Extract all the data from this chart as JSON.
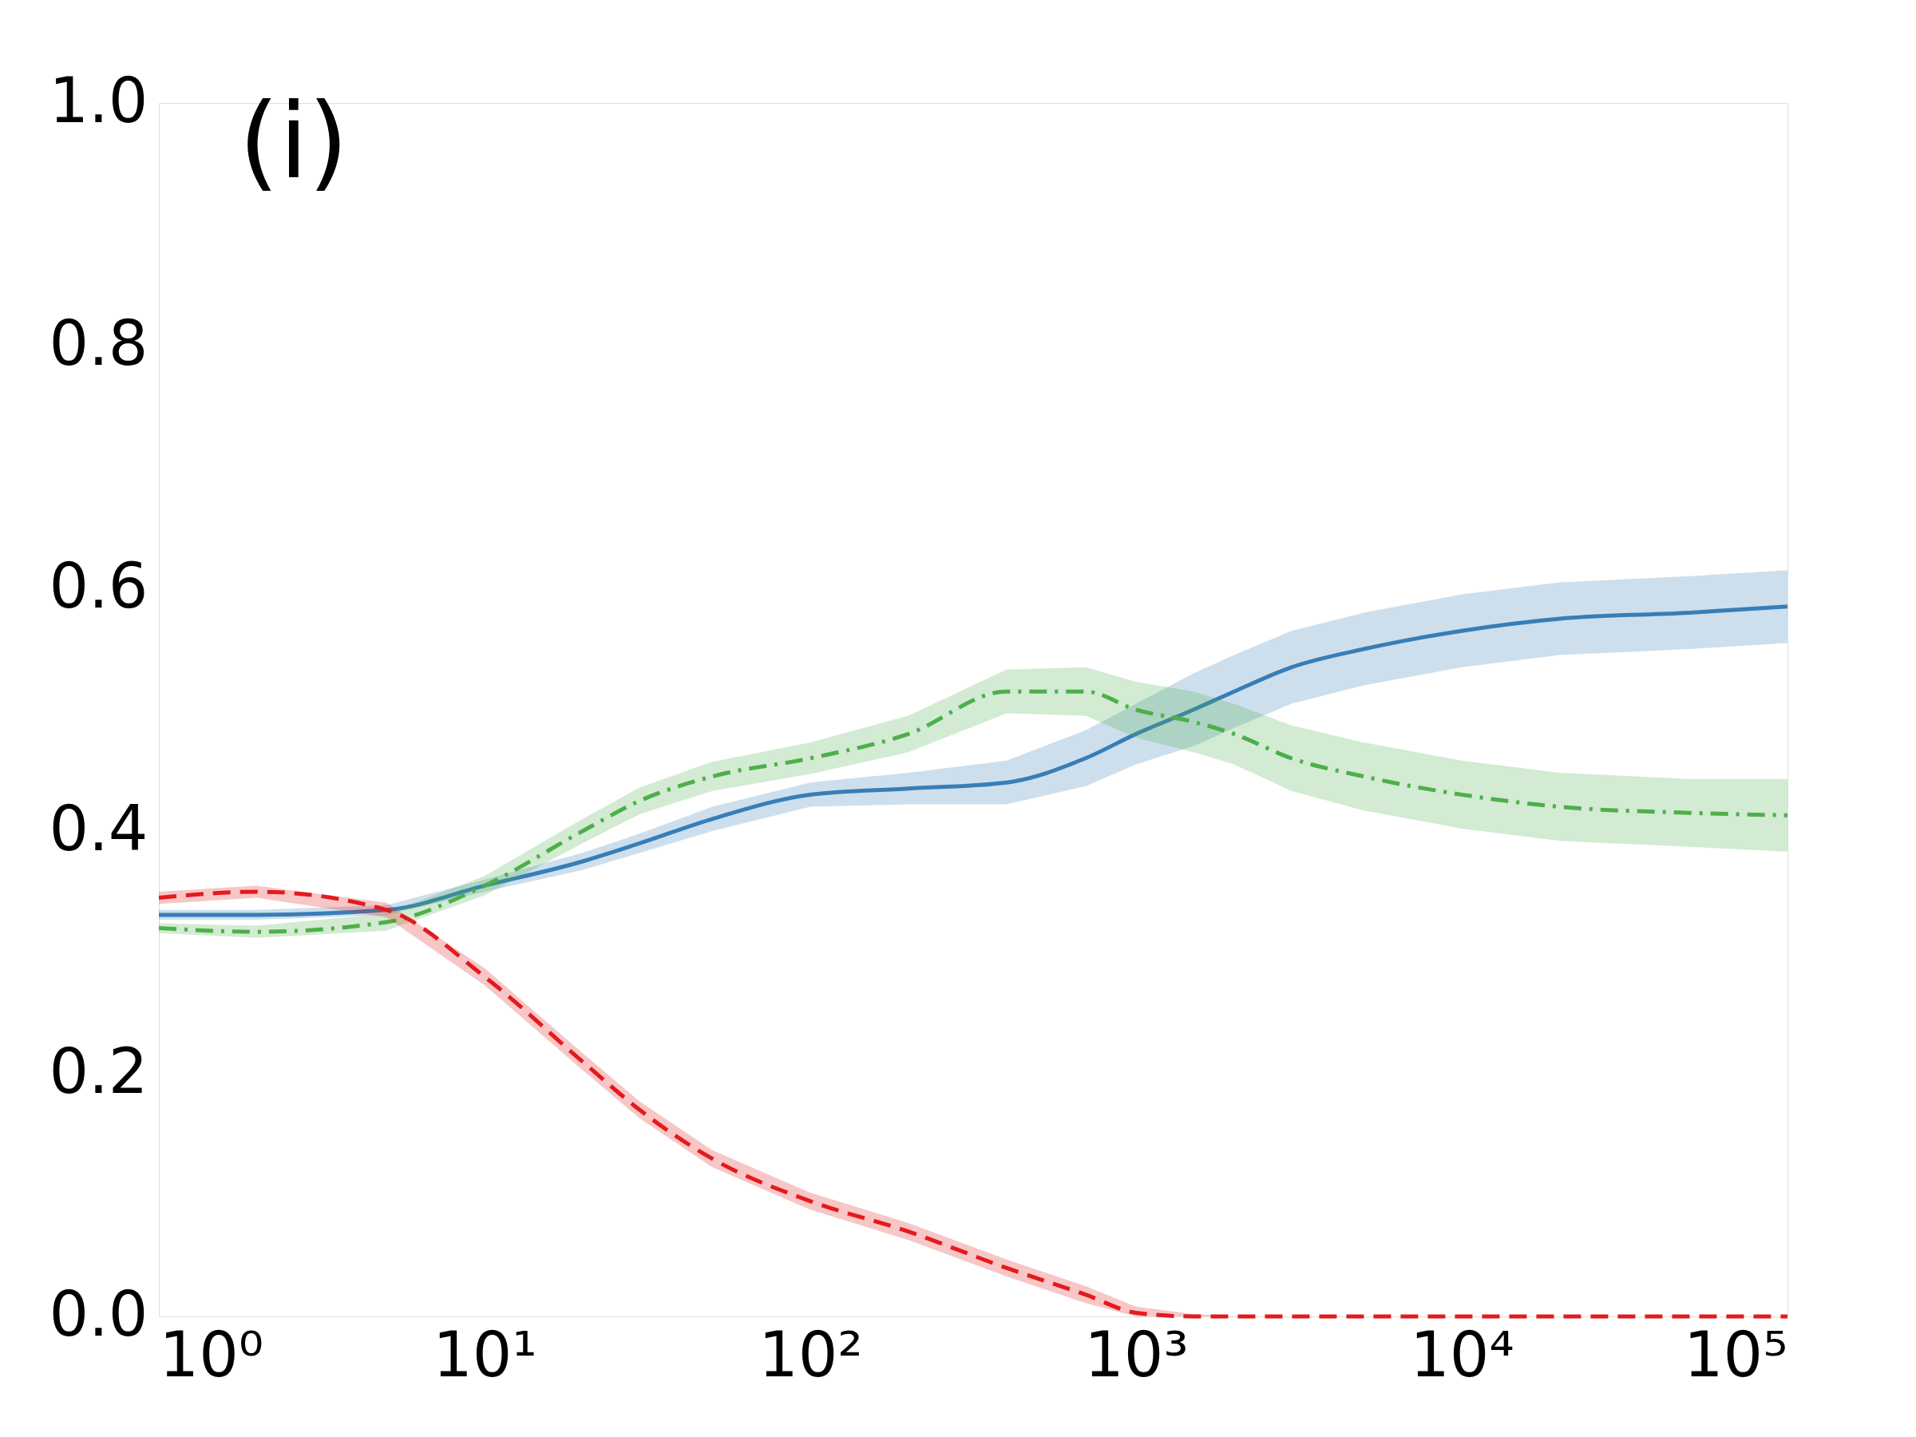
{
  "chart_data": {
    "type": "line",
    "annotations": [
      "(i)"
    ],
    "xlim": [
      1,
      100000
    ],
    "ylim": [
      0,
      1
    ],
    "xticks": [
      {
        "value": 1,
        "label": "10⁰"
      },
      {
        "value": 10,
        "label": "10¹"
      },
      {
        "value": 100,
        "label": "10²"
      },
      {
        "value": 1000,
        "label": "10³"
      },
      {
        "value": 10000,
        "label": "10⁴"
      },
      {
        "value": 100000,
        "label": "10⁵"
      }
    ],
    "yticks": [
      {
        "value": 0,
        "label": "0.0"
      },
      {
        "value": 0.2,
        "label": "0.2"
      },
      {
        "value": 0.4,
        "label": "0.4"
      },
      {
        "value": 0.6,
        "label": "0.6"
      },
      {
        "value": 0.8,
        "label": "0.8"
      },
      {
        "value": 1,
        "label": "1.0"
      }
    ],
    "log": "x",
    "grid": false,
    "x": [
      1,
      2,
      5,
      10,
      20,
      30,
      50,
      100,
      200,
      400,
      700,
      1000,
      1500,
      2000,
      3000,
      5000,
      10000,
      20000,
      50000,
      100000
    ],
    "series": [
      {
        "color": "#377eb8",
        "line_style": "solid",
        "values": [
          0.331,
          0.331,
          0.335,
          0.355,
          0.375,
          0.39,
          0.41,
          0.43,
          0.435,
          0.44,
          0.46,
          0.48,
          0.5,
          0.515,
          0.535,
          0.55,
          0.565,
          0.575,
          0.58,
          0.585
        ],
        "lower": [
          0.327,
          0.327,
          0.331,
          0.35,
          0.368,
          0.382,
          0.4,
          0.42,
          0.422,
          0.422,
          0.437,
          0.455,
          0.47,
          0.485,
          0.505,
          0.52,
          0.535,
          0.545,
          0.55,
          0.555
        ],
        "upper": [
          0.335,
          0.335,
          0.339,
          0.36,
          0.382,
          0.398,
          0.42,
          0.44,
          0.448,
          0.458,
          0.483,
          0.505,
          0.53,
          0.545,
          0.565,
          0.58,
          0.595,
          0.605,
          0.61,
          0.615
        ]
      },
      {
        "color": "#4daf4a",
        "line_style": "dashdot",
        "values": [
          0.32,
          0.317,
          0.325,
          0.355,
          0.4,
          0.425,
          0.445,
          0.46,
          0.48,
          0.515,
          0.515,
          0.5,
          0.49,
          0.48,
          0.46,
          0.445,
          0.43,
          0.42,
          0.415,
          0.413
        ],
        "lower": [
          0.316,
          0.312,
          0.318,
          0.347,
          0.39,
          0.414,
          0.433,
          0.447,
          0.465,
          0.497,
          0.495,
          0.477,
          0.465,
          0.455,
          0.433,
          0.417,
          0.402,
          0.392,
          0.387,
          0.383
        ],
        "upper": [
          0.324,
          0.322,
          0.332,
          0.363,
          0.41,
          0.436,
          0.457,
          0.473,
          0.495,
          0.533,
          0.535,
          0.523,
          0.515,
          0.505,
          0.487,
          0.473,
          0.458,
          0.448,
          0.443,
          0.443
        ]
      },
      {
        "color": "#e41a1c",
        "line_style": "dashed",
        "values": [
          0.345,
          0.35,
          0.335,
          0.28,
          0.21,
          0.17,
          0.13,
          0.095,
          0.07,
          0.04,
          0.018,
          0.003,
          0,
          0,
          0,
          0,
          0,
          0,
          0,
          0
        ],
        "lower": [
          0.34,
          0.345,
          0.329,
          0.273,
          0.203,
          0.163,
          0.123,
          0.088,
          0.063,
          0.033,
          0.011,
          0,
          0,
          0,
          0,
          0,
          0,
          0,
          0,
          0
        ],
        "upper": [
          0.35,
          0.355,
          0.341,
          0.287,
          0.217,
          0.177,
          0.137,
          0.102,
          0.077,
          0.047,
          0.025,
          0.008,
          0.002,
          0,
          0,
          0,
          0,
          0,
          0,
          0
        ]
      }
    ]
  }
}
